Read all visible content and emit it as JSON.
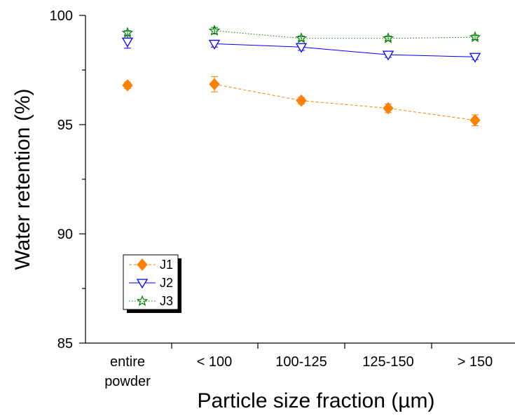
{
  "chart_data": {
    "type": "line",
    "categories": [
      {
        "line1": "entire",
        "line2": "powder"
      },
      {
        "line1": "< 100",
        "line2": ""
      },
      {
        "line1": "100-125",
        "line2": ""
      },
      {
        "line1": "125-150",
        "line2": ""
      },
      {
        "line1": "> 150",
        "line2": ""
      }
    ],
    "xlabel": "Particle size fraction (µm)",
    "ylabel": "Water retention (%)",
    "ylim": [
      85,
      100
    ],
    "yticks": [
      "85",
      "90",
      "95",
      "100"
    ],
    "grid": false,
    "legend_position": "bottom-left",
    "series": [
      {
        "name": "J1",
        "marker": "diamond",
        "line": "dashed",
        "color": "#FF8000",
        "values": [
          96.8,
          96.85,
          96.1,
          95.75,
          95.2
        ],
        "errors": [
          0.15,
          0.35,
          0.15,
          0.2,
          0.25
        ]
      },
      {
        "name": "J2",
        "marker": "triangle-down",
        "line": "solid",
        "color": "#0000FF",
        "values": [
          98.8,
          98.7,
          98.55,
          98.2,
          98.1
        ],
        "errors": [
          0.3,
          0.15,
          0.15,
          0.12,
          0.12
        ]
      },
      {
        "name": "J3",
        "marker": "star",
        "line": "dotted",
        "color": "#008000",
        "values": [
          99.2,
          99.3,
          98.95,
          98.95,
          99.0
        ],
        "errors": [
          0.1,
          0.15,
          0.1,
          0.1,
          0.1
        ]
      }
    ]
  }
}
